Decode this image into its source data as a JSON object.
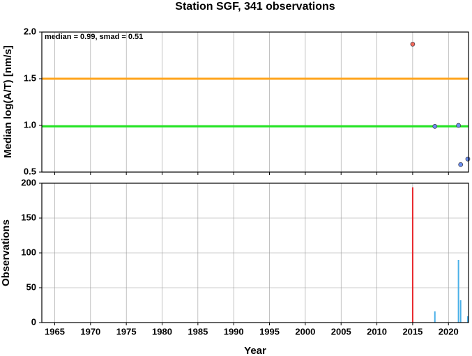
{
  "chart_data": [
    {
      "type": "scatter",
      "title": "Station SGF, 341 observations",
      "ylabel": "Median log(A/T) [nm/s]",
      "annotation": "median = 0.99, smad = 0.51",
      "x": [
        2015.0,
        2018.1,
        2021.4,
        2021.7,
        2022.7
      ],
      "values": [
        1.87,
        0.99,
        1.0,
        0.58,
        0.64
      ],
      "colors": [
        "#f26a5a",
        "#6b8ff0",
        "#6b8ff0",
        "#6b8ff0",
        "#6b8ff0"
      ],
      "hlines": [
        {
          "value": 1.5,
          "color": "#ffa41c"
        },
        {
          "value": 0.99,
          "color": "#22e622"
        }
      ],
      "xlim": [
        1963.2,
        2022.8
      ],
      "ylim": [
        0.5,
        2.0
      ],
      "yticks": [
        0.5,
        {
          "value": 1.0,
          "label": "1.0"
        },
        1.5,
        {
          "value": 2.0,
          "label": "2.0"
        }
      ],
      "grid": true
    },
    {
      "type": "bar",
      "ylabel": "Observations",
      "xlabel": "Year",
      "x": [
        2015.0,
        2018.1,
        2021.4,
        2021.7,
        2022.7
      ],
      "values": [
        194,
        16,
        90,
        32,
        9
      ],
      "colors": [
        "#e8262b",
        "#4ab0e8",
        "#4ab0e8",
        "#4ab0e8",
        "#4ab0e8"
      ],
      "xlim": [
        1963.2,
        2022.8
      ],
      "ylim": [
        0,
        200
      ],
      "yticks": [
        0,
        50,
        100,
        150,
        200
      ],
      "xticks": [
        1965,
        1970,
        1975,
        1980,
        1985,
        1990,
        1995,
        2000,
        2005,
        2010,
        2015,
        2020
      ],
      "grid": true
    }
  ]
}
